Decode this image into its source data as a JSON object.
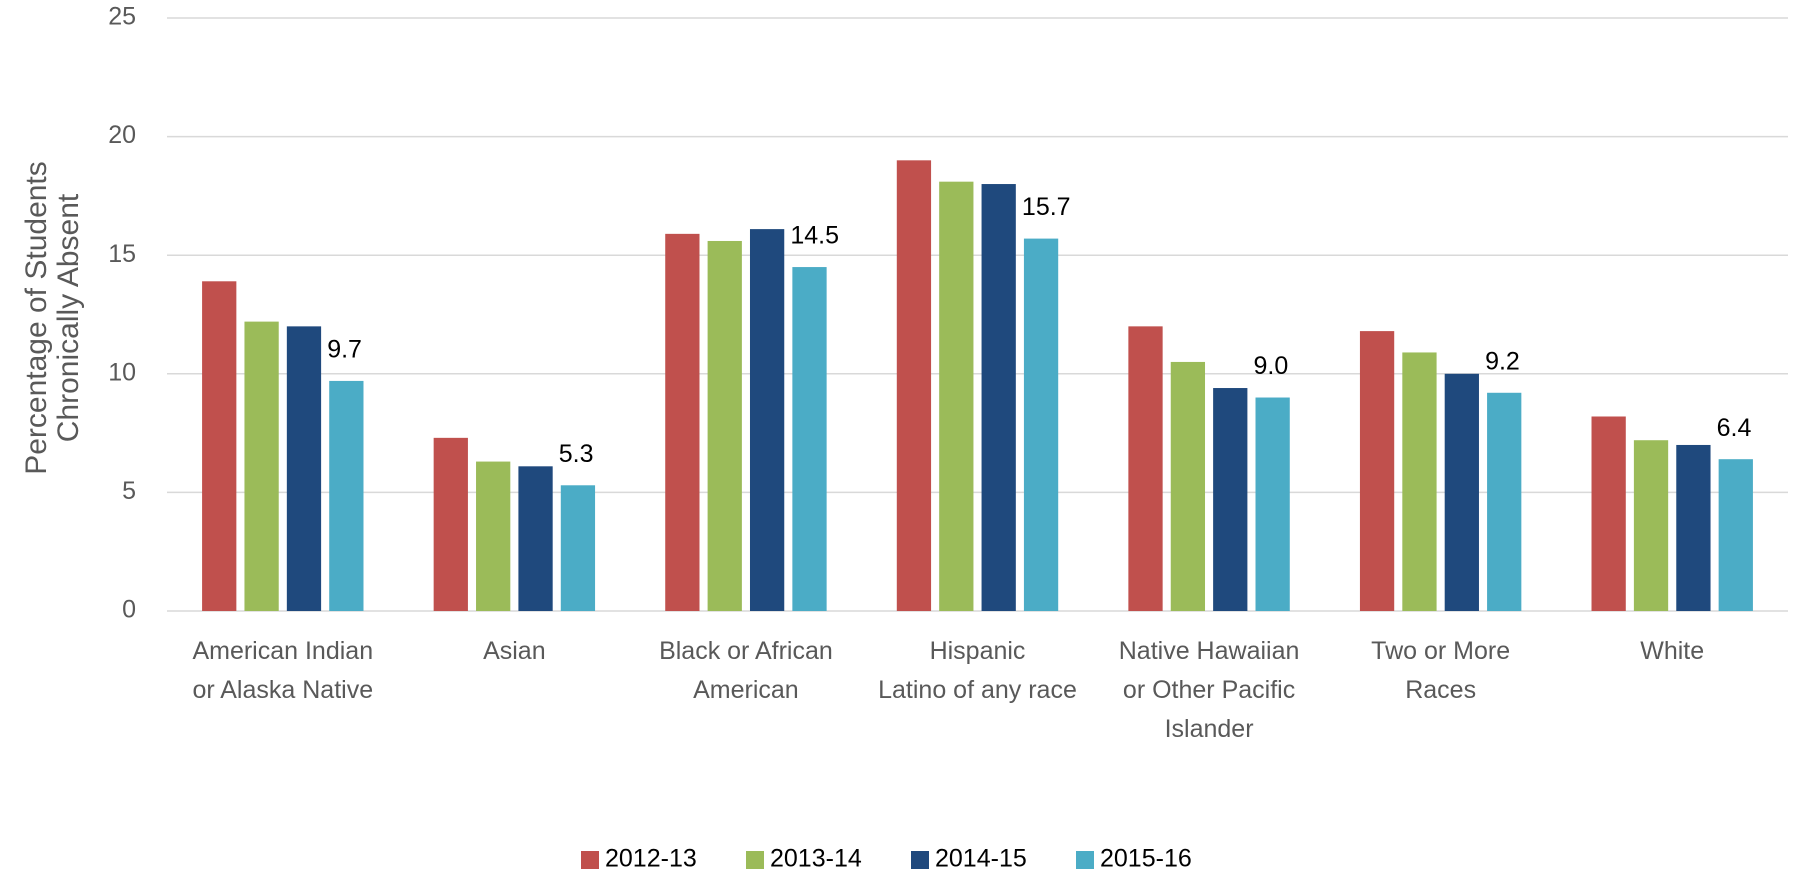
{
  "chart_data": {
    "type": "bar",
    "y_label": [
      "Percentage of Students",
      "Chronically Absent"
    ],
    "categories": [
      "American Indian\nor Alaska Native",
      "Asian",
      "Black or African\nAmerican",
      "Hispanic\nLatino of any race",
      "Native Hawaiian\nor Other Pacific\nIslander",
      "Two or More\nRaces",
      "White"
    ],
    "series": [
      {
        "name": "2012-13",
        "color": "#c0504d",
        "values": [
          13.9,
          7.3,
          15.9,
          19.0,
          12.0,
          11.8,
          8.2
        ]
      },
      {
        "name": "2013-14",
        "color": "#9bbb59",
        "values": [
          12.2,
          6.3,
          15.6,
          18.1,
          10.5,
          10.9,
          7.2
        ]
      },
      {
        "name": "2014-15",
        "color": "#1f497d",
        "values": [
          12.0,
          6.1,
          16.1,
          18.0,
          9.4,
          10.0,
          7.0
        ]
      },
      {
        "name": "2015-16",
        "color": "#4bacc6",
        "values": [
          9.7,
          5.3,
          14.5,
          15.7,
          9.0,
          9.2,
          6.4
        ],
        "value_labels": [
          "9.7",
          "5.3",
          "14.5",
          "15.7",
          "9.0",
          "9.2",
          "6.4"
        ]
      }
    ],
    "ylim": [
      0,
      25
    ],
    "yticks": [
      0,
      5,
      10,
      15,
      20,
      25
    ],
    "grid": true,
    "legend": "bottom"
  }
}
